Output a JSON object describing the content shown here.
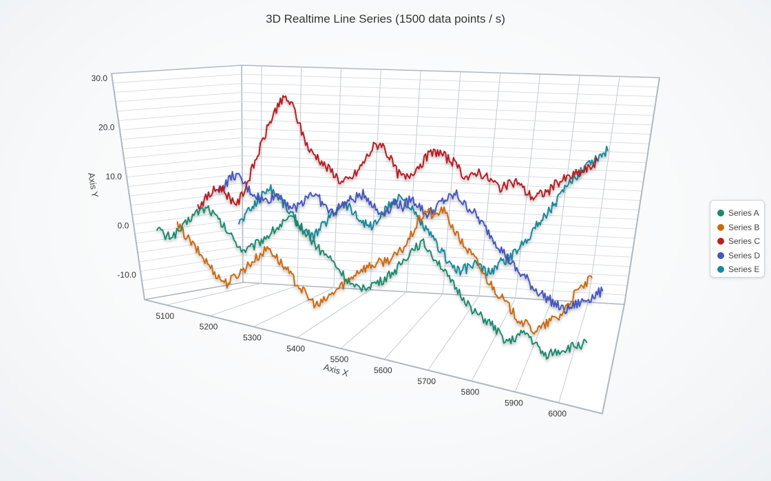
{
  "chart_data": {
    "type": "line",
    "title": "3D Realtime Line Series (1500 data points / s)",
    "xlabel": "Axis X",
    "ylabel": "Axis Y",
    "xlim": [
      5050,
      6100
    ],
    "ylim": [
      -15,
      31
    ],
    "x_ticks": [
      "5100",
      "5200",
      "5300",
      "5400",
      "5500",
      "5600",
      "5700",
      "5800",
      "5900",
      "6000"
    ],
    "y_ticks": [
      "30.0",
      "20.0",
      "10.0",
      "0.0",
      "-10.0"
    ],
    "legend_position": "right",
    "grid": true,
    "x": [
      5060,
      5080,
      5100,
      5120,
      5140,
      5160,
      5180,
      5200,
      5220,
      5240,
      5260,
      5280,
      5300,
      5320,
      5340,
      5360,
      5380,
      5400,
      5420,
      5440,
      5460,
      5480,
      5500,
      5520,
      5540,
      5560,
      5580,
      5600,
      5620,
      5640,
      5660,
      5680,
      5700,
      5720,
      5740,
      5760,
      5780,
      5800,
      5820,
      5840,
      5860,
      5880,
      5900,
      5920,
      5940,
      5960,
      5980,
      6000,
      6020,
      6040,
      6060
    ],
    "series": [
      {
        "name": "Series A",
        "color": "#1a8a6e",
        "z": 0,
        "values": [
          2,
          0,
          1,
          3,
          6,
          8,
          9,
          7,
          5,
          3,
          1,
          2,
          4,
          6,
          8,
          10,
          11,
          9,
          7,
          5,
          4,
          2,
          0,
          -2,
          -1,
          0,
          1,
          3,
          5,
          8,
          11,
          12,
          10,
          8,
          5,
          3,
          1,
          -1,
          -2,
          -3,
          -5,
          -6,
          -4,
          -3,
          -5,
          -7,
          -6,
          -5,
          -4,
          -3,
          -2
        ]
      },
      {
        "name": "Series B",
        "color": "#cc6a0a",
        "z": 1,
        "values": [
          1,
          -1,
          -3,
          -5,
          -7,
          -9,
          -10,
          -8,
          -6,
          -4,
          -2,
          0,
          -2,
          -4,
          -6,
          -8,
          -10,
          -11,
          -9,
          -7,
          -5,
          -3,
          -1,
          0,
          1,
          2,
          3,
          5,
          8,
          12,
          15,
          14,
          16,
          13,
          10,
          8,
          6,
          3,
          1,
          -1,
          -3,
          -5,
          -6,
          -7,
          -6,
          -4,
          -3,
          0,
          3,
          5,
          7
        ]
      },
      {
        "name": "Series C",
        "color": "#b81e24",
        "z": 2,
        "values": [
          4,
          6,
          8,
          9,
          7,
          6,
          10,
          15,
          20,
          25,
          29,
          31,
          29,
          24,
          20,
          19,
          17,
          16,
          14,
          15,
          17,
          20,
          23,
          24,
          21,
          18,
          17,
          19,
          21,
          23,
          24,
          23,
          22,
          20,
          19,
          21,
          20,
          19,
          18,
          19,
          20,
          18,
          17,
          18,
          19,
          21,
          22,
          23,
          24,
          25,
          27
        ]
      },
      {
        "name": "Series D",
        "color": "#4456c0",
        "z": 3,
        "values": [
          6,
          8,
          10,
          9,
          7,
          6,
          5,
          6,
          7,
          5,
          4,
          6,
          8,
          7,
          5,
          4,
          6,
          7,
          8,
          9,
          7,
          5,
          6,
          8,
          7,
          9,
          8,
          6,
          7,
          9,
          10,
          11,
          9,
          8,
          6,
          4,
          2,
          0,
          -2,
          -4,
          -5,
          -7,
          -8,
          -9,
          -10,
          -11,
          -10,
          -9,
          -8,
          -7,
          -6
        ]
      },
      {
        "name": "Series E",
        "color": "#17899e",
        "z": 4,
        "values": [
          -2,
          0,
          2,
          4,
          6,
          5,
          3,
          1,
          -1,
          -3,
          -4,
          -2,
          0,
          2,
          4,
          3,
          1,
          0,
          -1,
          1,
          3,
          5,
          6,
          4,
          2,
          0,
          -2,
          -4,
          -6,
          -8,
          -9,
          -8,
          -7,
          -8,
          -9,
          -7,
          -6,
          -5,
          -3,
          -1,
          1,
          3,
          5,
          7,
          9,
          11,
          13,
          15,
          16,
          17,
          18
        ]
      }
    ]
  }
}
